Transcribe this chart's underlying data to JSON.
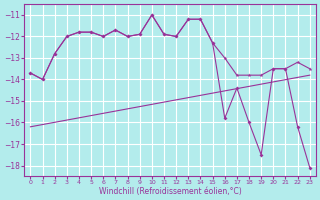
{
  "line1": {
    "x": [
      0,
      1,
      2,
      3,
      4,
      5,
      6,
      7,
      8,
      9,
      10,
      11,
      12,
      13,
      14,
      15,
      16,
      17,
      18,
      19,
      20,
      21,
      22,
      23
    ],
    "y": [
      -13.7,
      -14.0,
      -12.8,
      -12.0,
      -11.8,
      -11.8,
      -12.0,
      -11.7,
      -12.0,
      -11.9,
      -11.0,
      -11.9,
      -12.0,
      -11.2,
      -11.2,
      -12.3,
      -13.0,
      -13.8,
      -13.8,
      -13.8,
      -13.5,
      -13.5,
      -13.2,
      -13.5
    ],
    "marker": "*"
  },
  "line2": {
    "x": [
      0,
      23
    ],
    "y": [
      -16.2,
      -13.8
    ],
    "marker": null
  },
  "line3": {
    "x": [
      0,
      1,
      2,
      3,
      4,
      5,
      6,
      7,
      8,
      9,
      10,
      11,
      12,
      13,
      14,
      15,
      16,
      17,
      18,
      19,
      20,
      21,
      22,
      23
    ],
    "y": [
      -13.7,
      -14.0,
      -12.8,
      -12.0,
      -11.8,
      -11.8,
      -12.0,
      -11.7,
      -12.0,
      -11.9,
      -11.0,
      -11.9,
      -12.0,
      -11.2,
      -11.2,
      -12.3,
      -15.8,
      -14.4,
      -16.0,
      -17.5,
      -13.5,
      -13.5,
      -16.2,
      -18.1
    ],
    "marker": "D"
  },
  "line_color": "#993399",
  "bg_color": "#b3ecec",
  "grid_color": "#ffffff",
  "xlabel": "Windchill (Refroidissement éolien,°C)",
  "ylim": [
    -18.5,
    -10.5
  ],
  "xlim": [
    -0.5,
    23.5
  ],
  "xticks": [
    0,
    1,
    2,
    3,
    4,
    5,
    6,
    7,
    8,
    9,
    10,
    11,
    12,
    13,
    14,
    15,
    16,
    17,
    18,
    19,
    20,
    21,
    22,
    23
  ],
  "yticks": [
    -11,
    -12,
    -13,
    -14,
    -15,
    -16,
    -17,
    -18
  ]
}
